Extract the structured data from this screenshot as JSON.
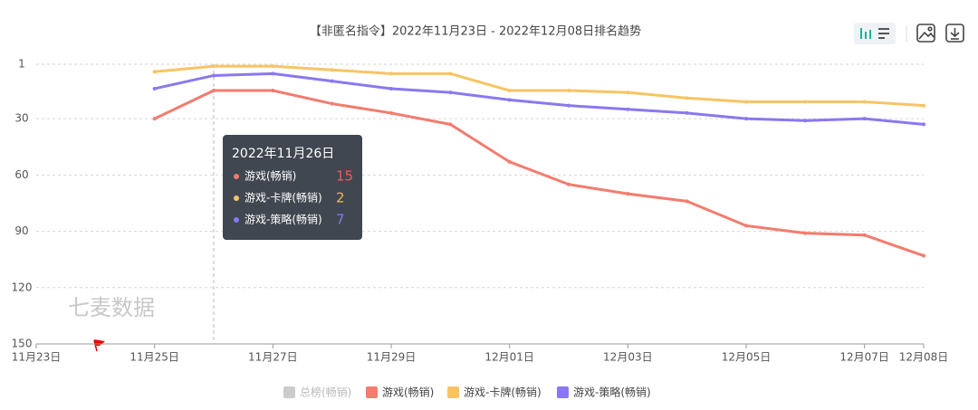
{
  "chart_data": {
    "type": "line",
    "title": "【非匿名指令】2022年11月23日 - 2022年12月08日排名趋势",
    "categories": [
      "11月23日",
      null,
      "11月25日",
      null,
      "11月27日",
      null,
      "11月29日",
      null,
      "12月01日",
      null,
      "12月03日",
      null,
      "12月05日",
      null,
      "12月07日",
      "12月08日"
    ],
    "series": [
      {
        "name": "总榜(畅销)",
        "color": "#cccccc",
        "hidden": true,
        "values": [
          null,
          null,
          null,
          null,
          null,
          null,
          null,
          null,
          null,
          null,
          null,
          null,
          null,
          null,
          null,
          null
        ]
      },
      {
        "name": "游戏(畅销)",
        "color": "#f47b6e",
        "values": [
          null,
          null,
          30,
          15,
          15,
          22,
          27,
          33,
          53,
          65,
          70,
          74,
          87,
          91,
          92,
          103
        ]
      },
      {
        "name": "游戏-卡牌(畅销)",
        "color": "#f8c462",
        "values": [
          null,
          null,
          5,
          2,
          2,
          4,
          6,
          6,
          15,
          15,
          16,
          19,
          21,
          21,
          21,
          23
        ]
      },
      {
        "name": "游戏-策略(畅销)",
        "color": "#8a78f0",
        "values": [
          null,
          null,
          14,
          7,
          6,
          10,
          14,
          16,
          20,
          23,
          25,
          27,
          30,
          31,
          30,
          33
        ]
      }
    ],
    "ylim": [
      150,
      1
    ],
    "yticks": [
      1,
      30,
      60,
      90,
      120,
      150
    ],
    "grid": true,
    "legend": "bottom",
    "tooltip": {
      "title": "2022年11月26日",
      "index": 3
    },
    "watermark": "七麦数据"
  }
}
